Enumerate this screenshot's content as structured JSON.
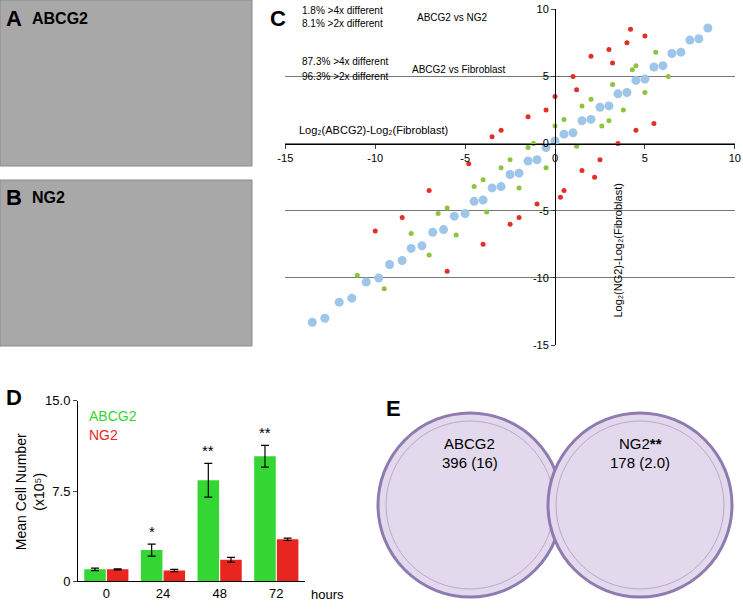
{
  "panels": [
    {
      "label": "A",
      "title": "ABCG2"
    },
    {
      "label": "B",
      "title": "NG2"
    },
    {
      "label": "E",
      "dishes": [
        {
          "title": "ABCG2",
          "text": "396 (16)"
        },
        {
          "title": "NG2",
          "significance": "**",
          "text": "178 (2.0)"
        }
      ]
    }
  ],
  "chart_data": [
    {
      "panel": "C",
      "type": "scatter",
      "x_label": "Log₂(ABCG2)-Log₂(Fibroblast)",
      "y_label": "Log₂(NG2)-Log₂(Fibroblast)",
      "annotations": [
        "1.8% >4x different",
        "ABCG2 vs NG2",
        "8.1% >2x different",
        "87.3% >4x different",
        "ABCG2 vs Fibroblast",
        "96.3% >2x different"
      ],
      "xlim": [
        -15,
        10
      ],
      "ylim": [
        -15,
        10
      ],
      "xticks": [
        -15,
        -10,
        -5,
        0,
        5,
        10
      ],
      "yticks": [
        -15,
        -10,
        -5,
        0,
        5,
        10
      ],
      "grid": true,
      "series": [
        {
          "color": "#9ec5ea",
          "x": [
            -13.5,
            -12.8,
            -12,
            -11.3,
            -10.5,
            -9.8,
            -9.2,
            -8.5,
            -8,
            -7.4,
            -6.8,
            -6.2,
            -5.6,
            -5,
            -4.5,
            -4,
            -3.5,
            -3,
            -2.5,
            -2,
            -1.5,
            -1,
            -0.5,
            0,
            0.5,
            1,
            1.5,
            2,
            2.5,
            3,
            3.5,
            4,
            4.5,
            5,
            5.5,
            6,
            6.5,
            7,
            7.5,
            8,
            8.5
          ],
          "y": [
            -13.3,
            -13,
            -11.8,
            -11.5,
            -10.3,
            -10,
            -9,
            -8.7,
            -7.8,
            -7.6,
            -6.6,
            -6.4,
            -5.4,
            -5.2,
            -4.3,
            -4.2,
            -3.3,
            -3.2,
            -2.3,
            -2.2,
            -1.3,
            -1.2,
            -0.3,
            0.2,
            0.7,
            0.8,
            1.7,
            1.8,
            2.7,
            2.8,
            3.7,
            3.8,
            4.7,
            4.8,
            5.7,
            5.8,
            6.7,
            6.8,
            7.7,
            7.8,
            8.6
          ]
        },
        {
          "color": "#8cc43c",
          "x": [
            -11,
            -9.5,
            -8,
            -7,
            -6,
            -5.5,
            -4.5,
            -3.8,
            -3,
            -2,
            -1.2,
            -0.5,
            0.5,
            1.2,
            2,
            2.6,
            3.2,
            3.8,
            4.3,
            5,
            5.6,
            6.3,
            -6.5,
            -4,
            -2.5,
            -1.5,
            0,
            1.5,
            3,
            4.5
          ],
          "y": [
            -9.8,
            -10.8,
            -6.7,
            -8.3,
            -4.8,
            -6.8,
            -3.2,
            -5.1,
            -1.8,
            -3.3,
            0,
            -1.8,
            1.8,
            -0.2,
            3.3,
            1.3,
            4.4,
            2.5,
            5.5,
            3.8,
            6.8,
            5,
            -5.2,
            -2.7,
            -1.2,
            -0.3,
            1.3,
            2.8,
            1.7,
            5.8
          ]
        },
        {
          "color": "#e0302a",
          "x": [
            -10,
            -8.5,
            -7,
            -6,
            -4.8,
            -4,
            -3.5,
            -2.5,
            -1.5,
            -1,
            0,
            0.5,
            1,
            1.5,
            2,
            2.5,
            3,
            3.5,
            4,
            4.5,
            5,
            5.5,
            -3,
            -2,
            1.2,
            2.2,
            3.2,
            0.3,
            -0.5,
            4.2
          ],
          "y": [
            -6.5,
            -5.5,
            -3.5,
            -9.5,
            -1.5,
            -7.5,
            0.5,
            -6,
            2,
            -4.5,
            3.5,
            -3.5,
            5,
            -2,
            6.5,
            -1.2,
            7,
            0,
            7.5,
            1,
            8,
            1.5,
            1,
            -5.5,
            4,
            -2.5,
            6,
            -4,
            2.5,
            8.5
          ]
        }
      ]
    },
    {
      "panel": "D",
      "type": "bar",
      "y_label": "Mean Cell Number\n(x10⁵)",
      "x_label": "hours",
      "categories": [
        "0",
        "24",
        "48",
        "72"
      ],
      "series": [
        {
          "name": "ABCG2",
          "color": "#33d633",
          "values": [
            1.0,
            2.6,
            8.4,
            10.4
          ],
          "errors": [
            0.1,
            0.5,
            1.4,
            0.9
          ]
        },
        {
          "name": "NG2",
          "color": "#e8251f",
          "values": [
            1.0,
            0.9,
            1.8,
            3.5
          ],
          "errors": [
            0.05,
            0.1,
            0.2,
            0.1
          ]
        }
      ],
      "ylim": [
        0,
        15
      ],
      "yticks": [
        0,
        7.5,
        {
          "value": 15,
          "label": "15.0"
        }
      ],
      "legend": "upper left",
      "annotations": [
        {
          "category": "24",
          "text": "*"
        },
        {
          "category": "48",
          "text": "**"
        },
        {
          "category": "72",
          "text": "**"
        }
      ]
    }
  ]
}
